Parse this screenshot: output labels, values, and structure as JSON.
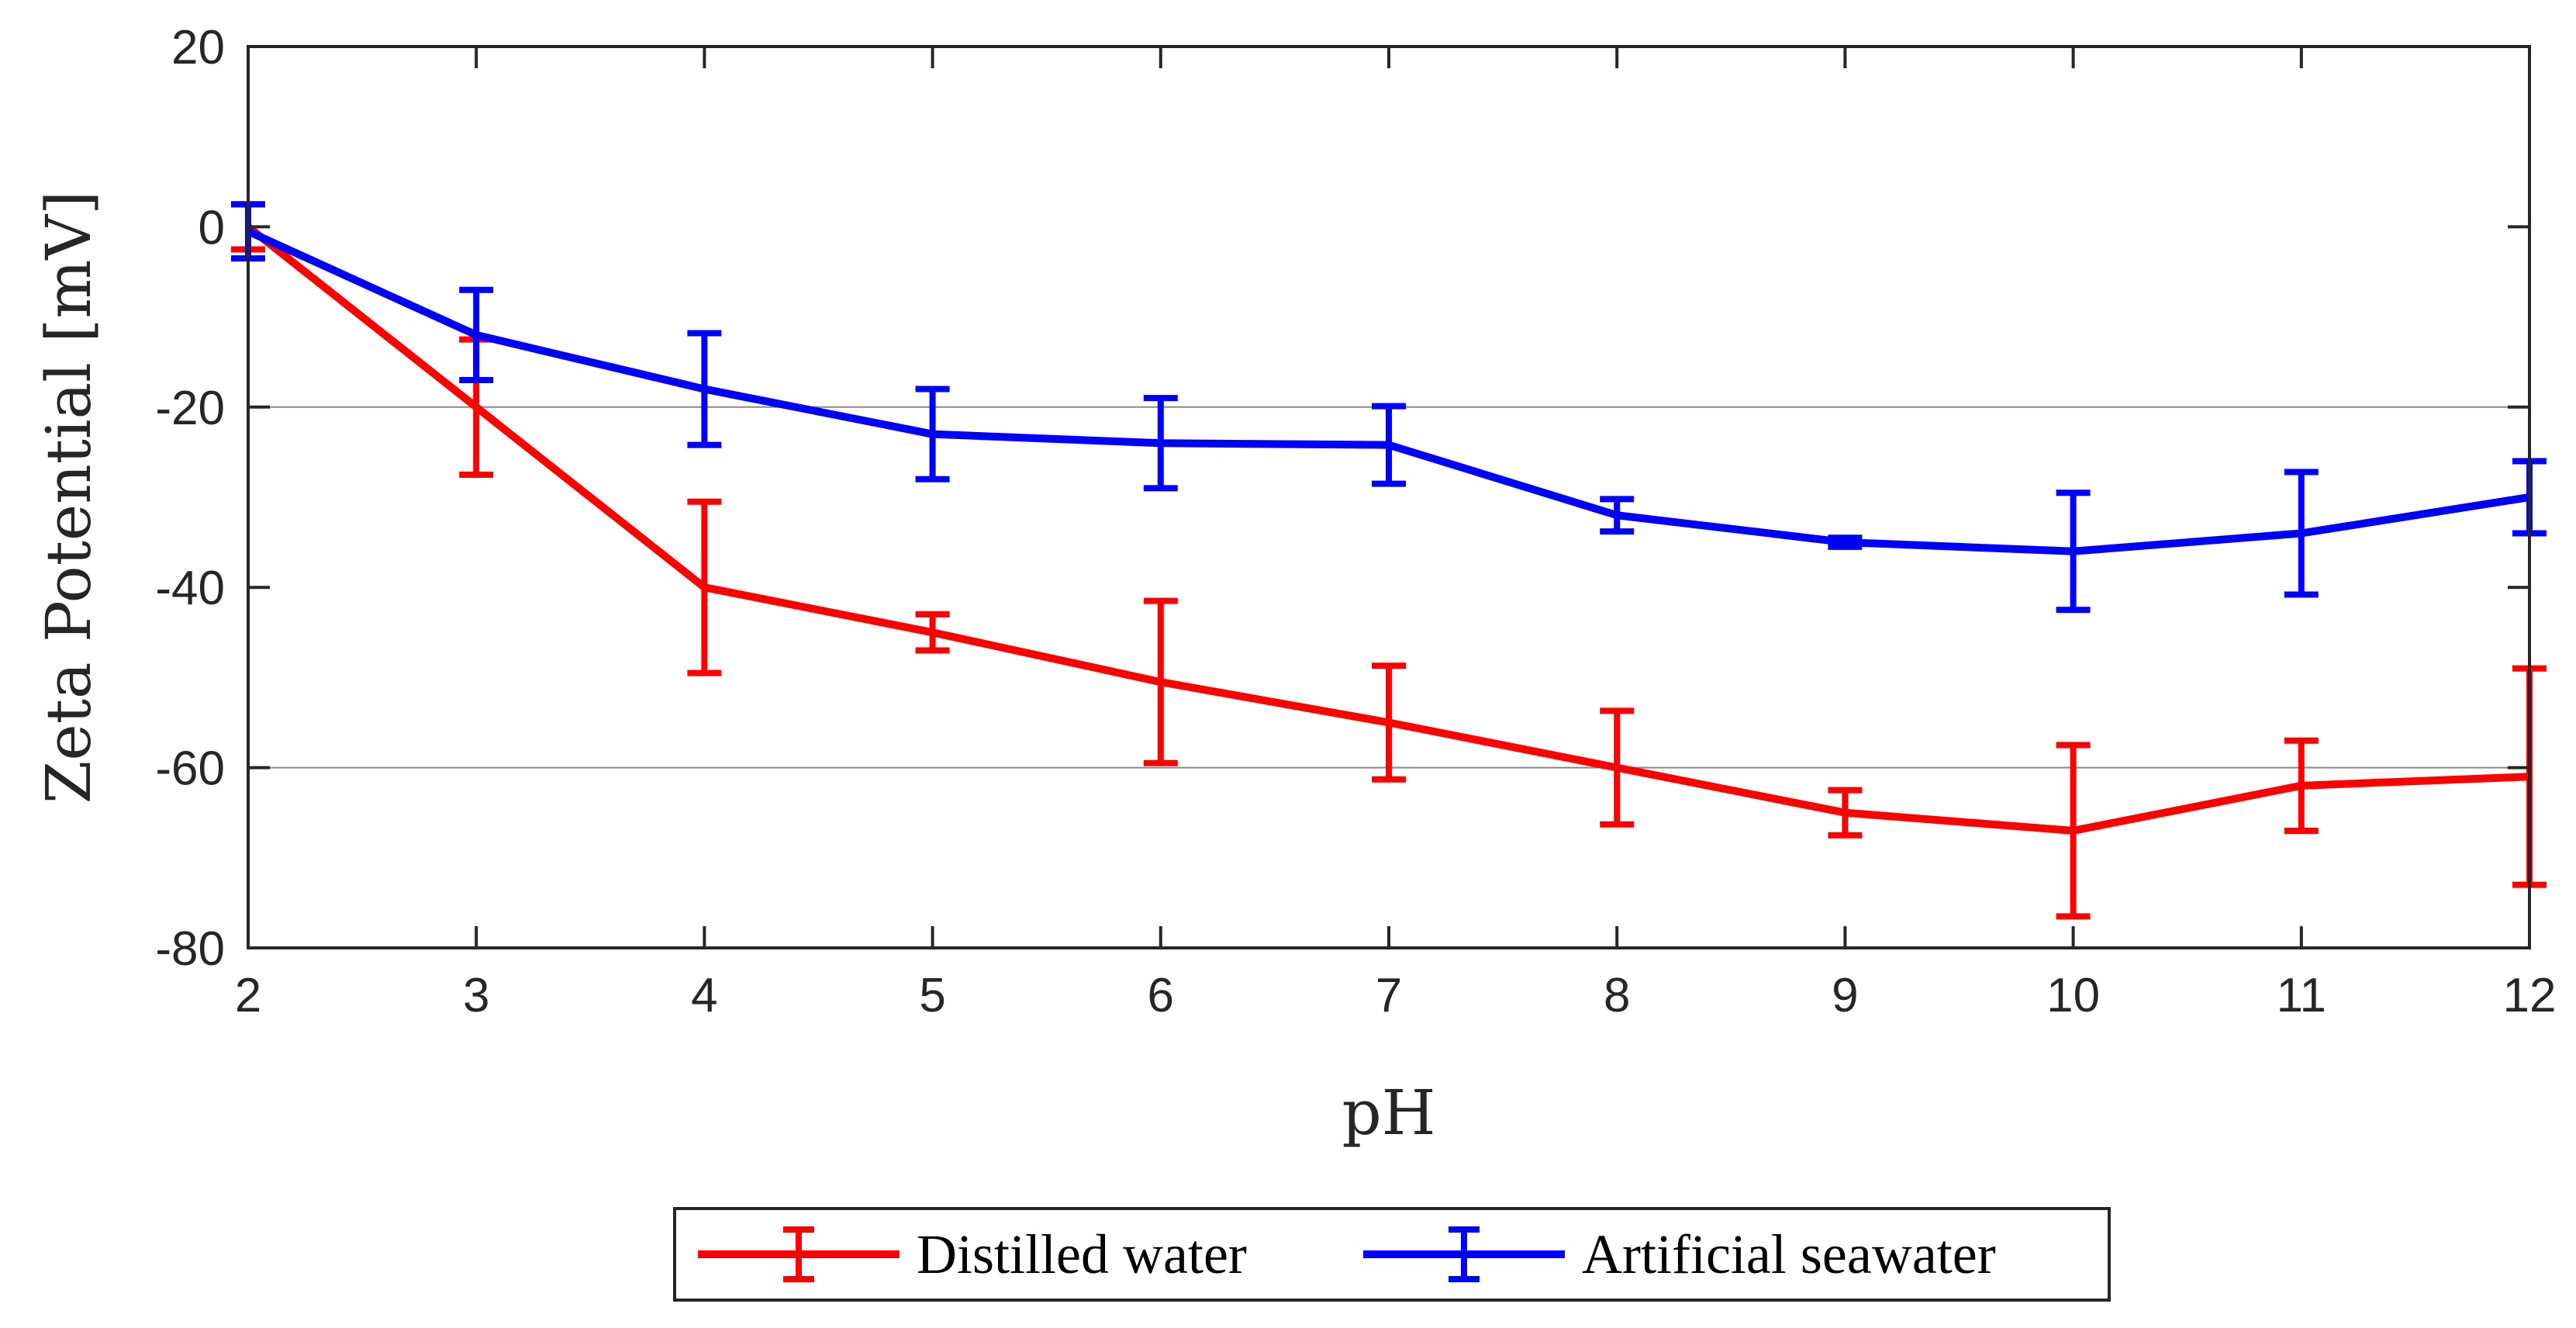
{
  "chart_data": {
    "type": "line",
    "title": "",
    "xlabel": "pH",
    "ylabel": "Zeta Potential [mV]",
    "xlim": [
      2,
      12
    ],
    "ylim": [
      -80,
      20
    ],
    "xticks": [
      "2",
      "3",
      "4",
      "5",
      "6",
      "7",
      "8",
      "9",
      "10",
      "11",
      "12"
    ],
    "yticks": [
      "20",
      "0",
      "-20",
      "-40",
      "-60",
      "-80"
    ],
    "ytick_values": [
      20,
      0,
      -20,
      -40,
      -60,
      -80
    ],
    "gridlines_y": [
      -20,
      -60
    ],
    "legend_position": "bottom-outside",
    "x": [
      2,
      3,
      4,
      5,
      6,
      7,
      8,
      9,
      10,
      11,
      12
    ],
    "series": [
      {
        "name": "Distilled water",
        "color": "#ff0000",
        "values": [
          0,
          -20,
          -40,
          -45,
          -50.5,
          -55,
          -60,
          -65,
          -67,
          -62,
          -61
        ],
        "error": [
          2.5,
          7.5,
          9.5,
          2,
          9,
          6.3,
          6.3,
          2.5,
          9.5,
          5,
          12
        ]
      },
      {
        "name": "Artificial seawater",
        "color": "#0000ff",
        "values": [
          -0.5,
          -12,
          -18,
          -23,
          -24,
          -24.2,
          -32,
          -35,
          -36,
          -34,
          -30
        ],
        "error": [
          3,
          5,
          6.2,
          5,
          5,
          4.3,
          1.8,
          0.5,
          6.5,
          6.8,
          4
        ]
      }
    ]
  }
}
